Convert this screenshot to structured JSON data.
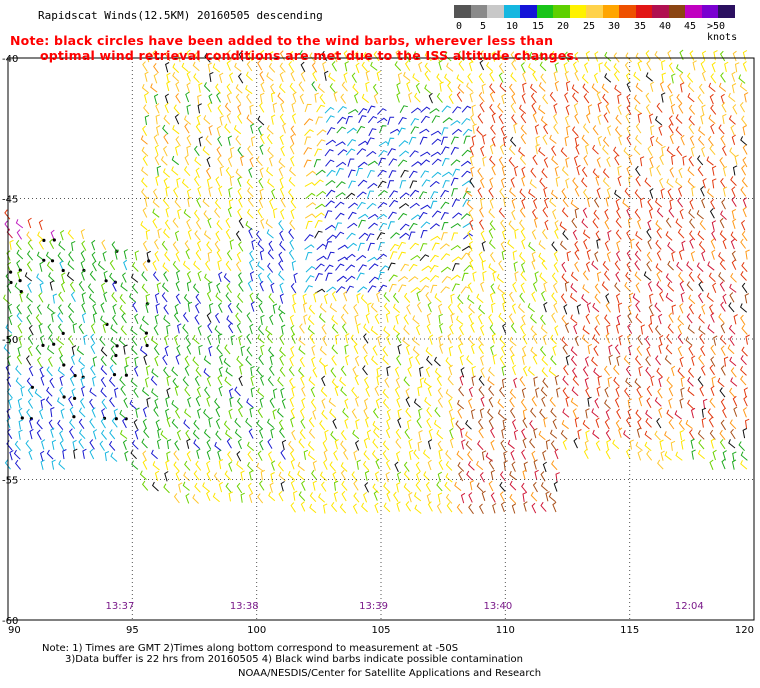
{
  "title": "Rapidscat Winds(12.5KM) 20160505 descending",
  "note_lines": [
    "Note: black circles have been added to the wind barbs, wherever less than",
    "optimal wind retrieval conditions are met due to the ISS altitude changes."
  ],
  "legend": {
    "labels": [
      "0",
      "5",
      "10",
      "15",
      "20",
      "25",
      "30",
      "35",
      "40",
      "45",
      ">50 knots"
    ],
    "colors": [
      "#555555",
      "#8a8a8a",
      "#c8c8c8",
      "#15b7e0",
      "#1414d8",
      "#19c419",
      "#5fd000",
      "#fff200",
      "#ffd24a",
      "#ffa500",
      "#ee5000",
      "#e21515",
      "#b01050",
      "#8b4513",
      "#c000c0",
      "#7a00d0",
      "#2b1060"
    ]
  },
  "map": {
    "lat_labels": [
      "-40",
      "-45",
      "-50",
      "-55",
      "-60"
    ],
    "lon_labels": [
      "90",
      "95",
      "100",
      "105",
      "110",
      "115",
      "120"
    ],
    "time_labels": [
      "13:37",
      "13:38",
      "13:39",
      "13:40",
      "12:04"
    ]
  },
  "footer": {
    "line1": "Note: 1) Times are GMT 2)Times along bottom correspond to measurement at -50S",
    "line2": "3)Data buffer is 22 hrs from 20160505 4) Black wind barbs indicate possible contamination",
    "line3": "NOAA/NESDIS/Center for Satellite Applications and Research"
  }
}
